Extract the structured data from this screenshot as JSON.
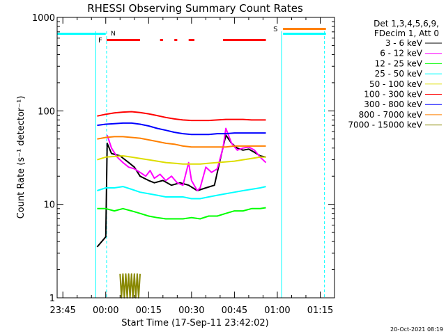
{
  "chart_data": {
    "type": "line",
    "title": "RHESSI Observing Summary Count Rates",
    "xlabel": "Start Time (17-Sep-11 23:42:02)",
    "ylabel": "Count Rate (s⁻¹ detector⁻¹)",
    "yscale": "log",
    "ylim": [
      1,
      1000
    ],
    "xlim_minutes": [
      -17,
      80
    ],
    "x_ticks": [
      {
        "t": -15,
        "label": "23:45"
      },
      {
        "t": 0,
        "label": "00:00"
      },
      {
        "t": 15,
        "label": "00:15"
      },
      {
        "t": 30,
        "label": "00:30"
      },
      {
        "t": 45,
        "label": "00:45"
      },
      {
        "t": 60,
        "label": "01:00"
      },
      {
        "t": 75,
        "label": "01:15"
      }
    ],
    "y_ticks": [
      {
        "v": 1,
        "label": "1"
      },
      {
        "v": 10,
        "label": "10"
      },
      {
        "v": 100,
        "label": "100"
      },
      {
        "v": 1000,
        "label": "1000"
      }
    ],
    "legend_header": [
      "Det 1,3,4,5,6,9,",
      "FDecim 1, Att 0"
    ],
    "legend_position": "right, outside plot",
    "series": [
      {
        "name": "3 - 6 keV",
        "color": "#000000",
        "points": [
          [
            -3,
            3.5
          ],
          [
            0,
            4.5
          ],
          [
            0.5,
            45
          ],
          [
            2,
            35
          ],
          [
            5,
            33
          ],
          [
            8,
            28
          ],
          [
            10,
            25
          ],
          [
            12,
            20
          ],
          [
            15,
            18
          ],
          [
            17,
            17
          ],
          [
            20,
            18
          ],
          [
            23,
            16
          ],
          [
            26,
            17
          ],
          [
            29,
            16
          ],
          [
            32,
            14
          ],
          [
            35,
            15
          ],
          [
            38,
            16
          ],
          [
            40,
            30
          ],
          [
            42,
            55
          ],
          [
            44,
            45
          ],
          [
            46,
            40
          ],
          [
            48,
            38
          ],
          [
            50,
            39
          ],
          [
            52,
            36
          ],
          [
            54,
            33
          ],
          [
            56,
            32
          ]
        ]
      },
      {
        "name": "6 - 12 keV",
        "color": "#ff00ff",
        "points": [
          [
            0.5,
            55
          ],
          [
            2,
            40
          ],
          [
            4,
            32
          ],
          [
            6,
            28
          ],
          [
            8,
            25
          ],
          [
            10,
            24
          ],
          [
            12,
            22
          ],
          [
            14,
            20
          ],
          [
            15.5,
            23
          ],
          [
            17,
            19
          ],
          [
            19,
            21
          ],
          [
            21,
            18
          ],
          [
            23,
            20
          ],
          [
            25,
            17
          ],
          [
            27,
            16
          ],
          [
            29,
            28
          ],
          [
            30,
            18
          ],
          [
            32,
            14
          ],
          [
            33,
            15
          ],
          [
            35,
            25
          ],
          [
            37,
            22
          ],
          [
            39,
            24
          ],
          [
            41,
            40
          ],
          [
            42,
            65
          ],
          [
            44,
            45
          ],
          [
            46,
            38
          ],
          [
            48,
            40
          ],
          [
            50,
            41
          ],
          [
            52,
            38
          ],
          [
            54,
            32
          ],
          [
            56,
            28
          ]
        ]
      },
      {
        "name": "12 - 25 keV",
        "color": "#00ff00",
        "points": [
          [
            -3,
            9
          ],
          [
            0,
            9
          ],
          [
            3,
            8.5
          ],
          [
            6,
            9
          ],
          [
            9,
            8.5
          ],
          [
            12,
            8
          ],
          [
            15,
            7.5
          ],
          [
            18,
            7.2
          ],
          [
            21,
            7
          ],
          [
            24,
            7
          ],
          [
            27,
            7
          ],
          [
            30,
            7.2
          ],
          [
            33,
            7
          ],
          [
            36,
            7.5
          ],
          [
            39,
            7.5
          ],
          [
            42,
            8
          ],
          [
            45,
            8.5
          ],
          [
            48,
            8.5
          ],
          [
            51,
            9
          ],
          [
            54,
            9
          ],
          [
            56,
            9.2
          ]
        ]
      },
      {
        "name": "25 - 50 keV",
        "color": "#00ffff",
        "points": [
          [
            -3,
            14
          ],
          [
            0,
            15
          ],
          [
            3,
            15
          ],
          [
            6,
            15.5
          ],
          [
            9,
            14.5
          ],
          [
            12,
            13.5
          ],
          [
            15,
            13
          ],
          [
            18,
            12.5
          ],
          [
            21,
            12
          ],
          [
            24,
            12
          ],
          [
            27,
            12
          ],
          [
            30,
            11.5
          ],
          [
            33,
            11.5
          ],
          [
            36,
            12
          ],
          [
            39,
            12.5
          ],
          [
            42,
            13
          ],
          [
            45,
            13.5
          ],
          [
            48,
            14
          ],
          [
            51,
            14.5
          ],
          [
            54,
            15
          ],
          [
            56,
            15.5
          ]
        ]
      },
      {
        "name": "50 - 100 keV",
        "color": "#dddd00",
        "points": [
          [
            -3,
            30
          ],
          [
            0,
            32
          ],
          [
            3,
            32.5
          ],
          [
            6,
            33
          ],
          [
            9,
            32
          ],
          [
            12,
            31
          ],
          [
            15,
            30
          ],
          [
            18,
            29
          ],
          [
            21,
            28
          ],
          [
            24,
            27.5
          ],
          [
            27,
            27
          ],
          [
            30,
            27
          ],
          [
            33,
            27
          ],
          [
            36,
            27.5
          ],
          [
            39,
            28
          ],
          [
            42,
            28.5
          ],
          [
            45,
            29
          ],
          [
            48,
            30
          ],
          [
            51,
            31
          ],
          [
            54,
            32
          ],
          [
            56,
            32
          ]
        ]
      },
      {
        "name": "100 - 300 keV",
        "color": "#ff0000",
        "points": [
          [
            -3,
            88
          ],
          [
            0,
            92
          ],
          [
            3,
            95
          ],
          [
            6,
            97
          ],
          [
            9,
            98
          ],
          [
            12,
            96
          ],
          [
            15,
            93
          ],
          [
            18,
            89
          ],
          [
            21,
            85
          ],
          [
            24,
            82
          ],
          [
            27,
            80
          ],
          [
            30,
            79
          ],
          [
            33,
            79
          ],
          [
            36,
            79
          ],
          [
            39,
            80
          ],
          [
            42,
            81
          ],
          [
            45,
            81
          ],
          [
            48,
            81
          ],
          [
            51,
            80
          ],
          [
            54,
            80
          ],
          [
            56,
            80
          ]
        ]
      },
      {
        "name": "300 - 800 keV",
        "color": "#0000ff",
        "points": [
          [
            -3,
            70
          ],
          [
            0,
            72
          ],
          [
            3,
            73
          ],
          [
            6,
            74
          ],
          [
            9,
            74
          ],
          [
            12,
            72
          ],
          [
            15,
            69
          ],
          [
            18,
            65
          ],
          [
            21,
            62
          ],
          [
            24,
            59
          ],
          [
            27,
            57
          ],
          [
            30,
            56
          ],
          [
            33,
            56
          ],
          [
            36,
            56
          ],
          [
            39,
            57
          ],
          [
            42,
            57
          ],
          [
            45,
            58
          ],
          [
            48,
            58
          ],
          [
            51,
            58
          ],
          [
            54,
            58
          ],
          [
            56,
            58
          ]
        ]
      },
      {
        "name": "800 - 7000 keV",
        "color": "#ff8000",
        "points": [
          [
            -3,
            50
          ],
          [
            0,
            52
          ],
          [
            3,
            53
          ],
          [
            6,
            53
          ],
          [
            9,
            52
          ],
          [
            12,
            51
          ],
          [
            15,
            49
          ],
          [
            18,
            47
          ],
          [
            21,
            45
          ],
          [
            24,
            44
          ],
          [
            27,
            42
          ],
          [
            30,
            41
          ],
          [
            33,
            41
          ],
          [
            36,
            41
          ],
          [
            39,
            41
          ],
          [
            42,
            41
          ],
          [
            45,
            42
          ],
          [
            48,
            42
          ],
          [
            51,
            42
          ],
          [
            54,
            42
          ],
          [
            56,
            42
          ]
        ]
      },
      {
        "name": "7000 - 15000 keV",
        "color": "#888800",
        "points": [
          [
            5,
            1.8
          ],
          [
            5.5,
            1
          ],
          [
            6,
            1.8
          ],
          [
            6.5,
            1
          ],
          [
            7,
            1.8
          ],
          [
            7.5,
            1
          ],
          [
            8,
            1.8
          ],
          [
            8.5,
            1
          ],
          [
            9,
            1.8
          ],
          [
            9.5,
            1
          ],
          [
            10,
            1.8
          ],
          [
            10.5,
            1
          ],
          [
            11,
            1.8
          ],
          [
            11.5,
            1
          ],
          [
            12,
            1.8
          ]
        ]
      }
    ],
    "flags": {
      "N": {
        "label": "N",
        "color": "#00ffff",
        "intervals": [
          [
            -17,
            0
          ],
          [
            62,
            77
          ]
        ]
      },
      "F": {
        "label": "F",
        "color": "#ff0000",
        "intervals": [
          [
            0.3,
            12
          ],
          [
            19,
            20
          ],
          [
            24,
            25
          ],
          [
            29,
            31
          ],
          [
            41,
            56
          ]
        ]
      },
      "S": {
        "label": "S",
        "color": "#ff8000",
        "intervals": [
          [
            62,
            77
          ]
        ]
      }
    },
    "night_boundaries": [
      -3.5,
      0.3,
      61.5,
      76.5
    ],
    "timestamp": "20-Oct-2021 08:19"
  }
}
